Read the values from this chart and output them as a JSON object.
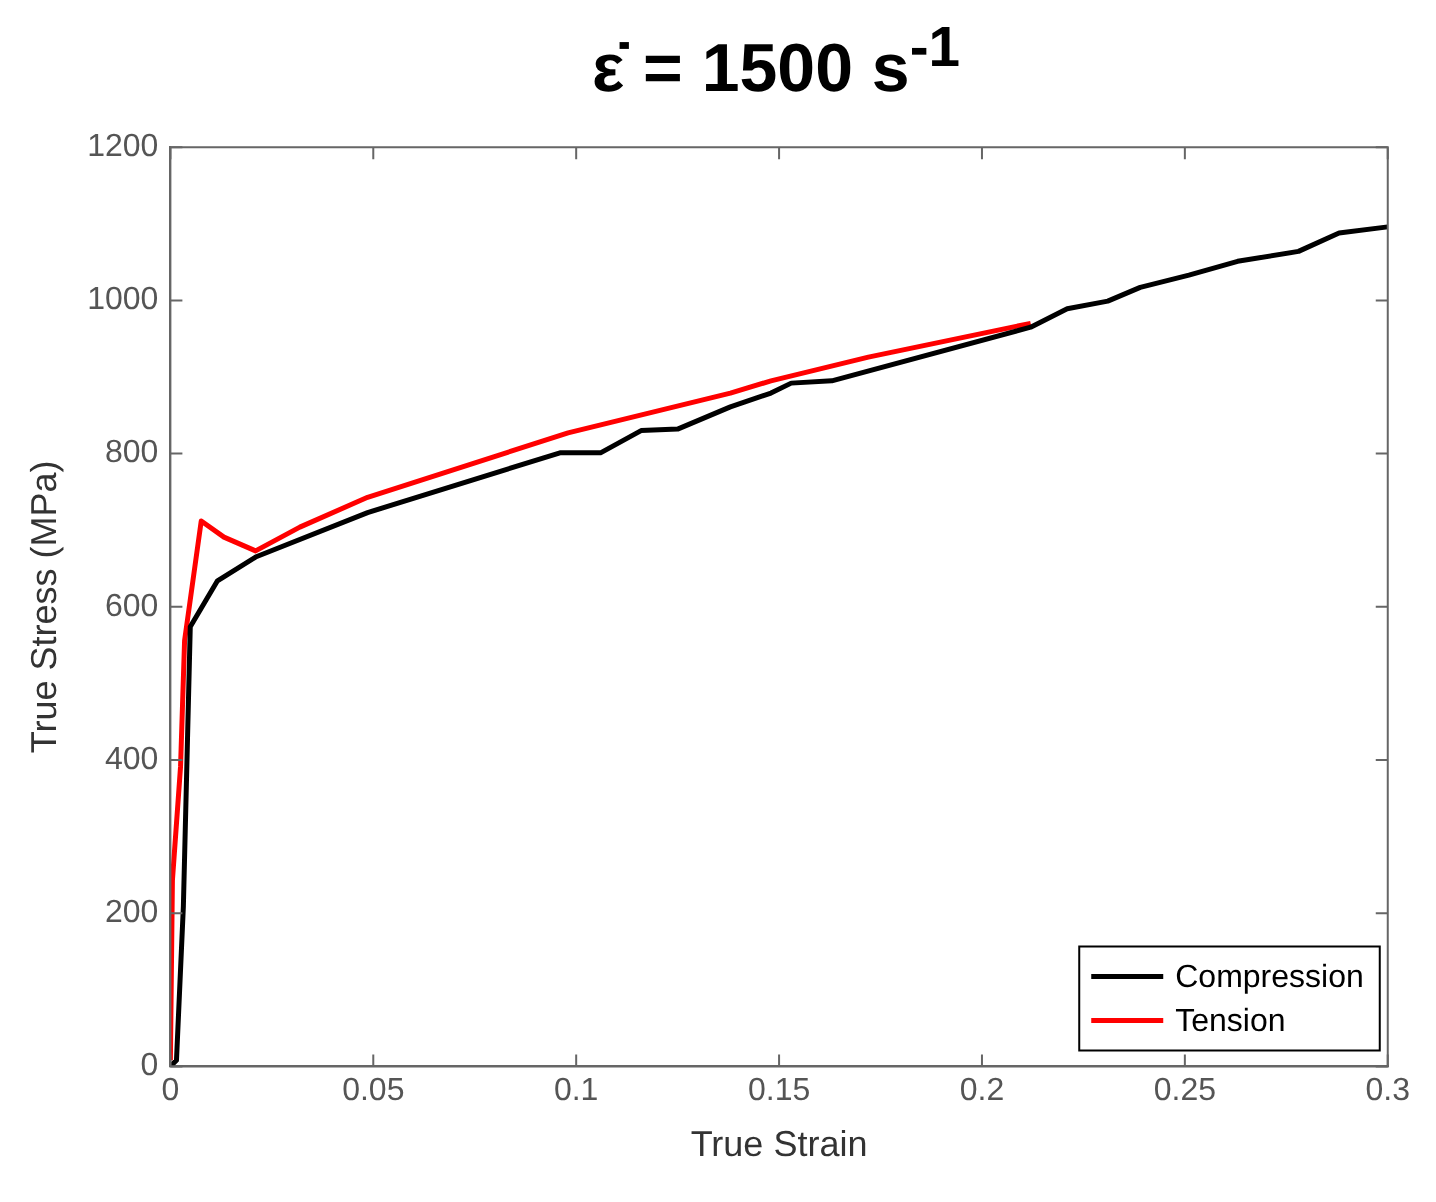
{
  "chart_data": {
    "type": "line",
    "title": "ε̇  = 1500 s$^{-1}$",
    "xlabel": "True Strain",
    "ylabel": "True Stress (MPa)",
    "xlim": [
      0,
      0.3
    ],
    "xticks": [
      0,
      0.05,
      0.1,
      0.15,
      0.2,
      0.25,
      0.3
    ],
    "ylim": [
      0,
      1200
    ],
    "yticks": [
      0,
      200,
      400,
      600,
      800,
      1000,
      1200
    ],
    "grid": false,
    "legend": "bottom right",
    "marker": "none",
    "line_style": "solid",
    "series": [
      {
        "name": "Compression",
        "color": "#000000",
        "x": [
          0,
          0.0015,
          0.0032,
          0.0049,
          0.0116,
          0.021,
          0.0486,
          0.096,
          0.106,
          0.116,
          0.125,
          0.138,
          0.148,
          0.153,
          0.163,
          0.212,
          0.221,
          0.231,
          0.239,
          0.251,
          0.263,
          0.278,
          0.288,
          0.3
        ],
        "values": [
          0,
          8,
          209,
          574,
          634,
          665,
          723,
          801,
          801,
          830,
          832,
          861,
          879,
          892,
          895,
          965,
          989,
          999,
          1017,
          1033,
          1051,
          1064,
          1088,
          1096
        ]
      },
      {
        "name": "Tension",
        "color": "#ff0000",
        "x": [
          0,
          0.0005,
          0.0025,
          0.0035,
          0.0076,
          0.0132,
          0.021,
          0.0319,
          0.0486,
          0.098,
          0.138,
          0.148,
          0.172,
          0.212
        ],
        "values": [
          8,
          243,
          391,
          556,
          712,
          691,
          673,
          704,
          743,
          827,
          879,
          895,
          926,
          970
        ]
      }
    ]
  }
}
